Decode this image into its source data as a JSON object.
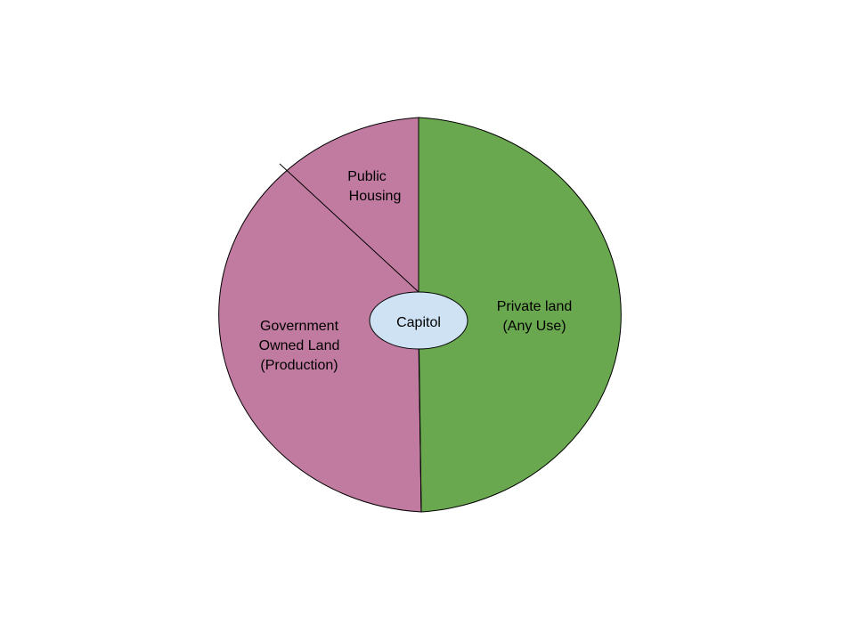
{
  "colors": {
    "government_fill": "#c27ba0",
    "private_fill": "#6aa84f",
    "capitol_fill": "#cfe2f3",
    "outline": "#000000"
  },
  "regions": {
    "private_land": {
      "line1": "Private land",
      "line2": "(Any Use)"
    },
    "public_housing": {
      "line1": "Public",
      "line2": "Housing"
    },
    "government_land": {
      "line1": "Government",
      "line2": "Owned Land",
      "line3": "(Production)"
    },
    "capitol": {
      "label": "Capitol"
    }
  }
}
